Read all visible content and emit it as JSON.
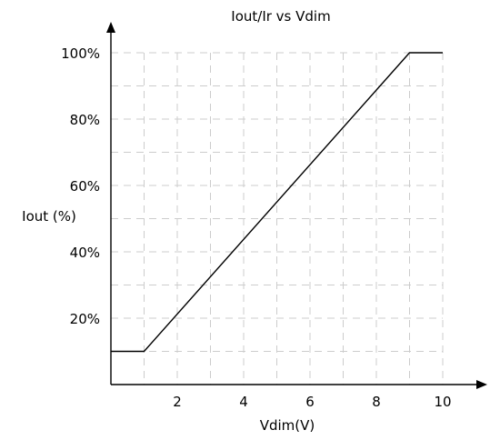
{
  "chart_data": {
    "type": "line",
    "title": "Iout/Ir vs Vdim",
    "xlabel": "Vdim(V)",
    "ylabel": "Iout (%)",
    "xlim": [
      0,
      10
    ],
    "ylim": [
      0,
      100
    ],
    "x_ticks": [
      2,
      4,
      6,
      8,
      10
    ],
    "x_tick_labels": [
      "2",
      "4",
      "6",
      "8",
      "10"
    ],
    "y_ticks": [
      20,
      40,
      60,
      80,
      100
    ],
    "y_tick_labels": [
      "20%",
      "40%",
      "60%",
      "80%",
      "100%"
    ],
    "x_grid_step": 1,
    "y_grid_step": 10,
    "grid": true,
    "series": [
      {
        "x": [
          0,
          1,
          9,
          10
        ],
        "y": [
          10,
          10,
          100,
          100
        ]
      }
    ]
  }
}
